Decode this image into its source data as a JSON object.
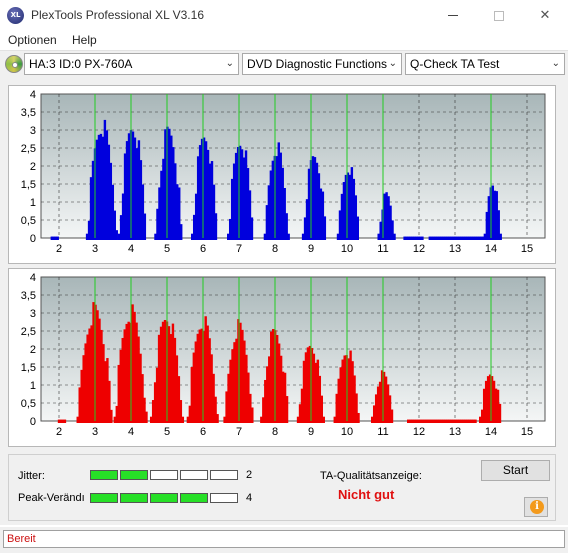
{
  "window": {
    "title": "PlexTools Professional XL V3.16",
    "icon_text": "XL"
  },
  "menu": [
    {
      "label": "Optionen"
    },
    {
      "label": "Help"
    }
  ],
  "toolbar": {
    "drive": "HA:3 ID:0  PX-760A",
    "function": "DVD Diagnostic Functions",
    "test": "Q-Check TA Test"
  },
  "charts": {
    "bar_color_top": "#0000dd",
    "bar_color_bottom": "#ee0000",
    "marker_color": "#22cc22"
  },
  "chart_data": [
    {
      "type": "bar",
      "name_hint": "top",
      "x_ticks": [
        "2",
        "3",
        "4",
        "5",
        "6",
        "7",
        "8",
        "9",
        "10",
        "11",
        "12",
        "13",
        "14",
        "15"
      ],
      "y_ticks": [
        "0",
        "0,5",
        "1",
        "1,5",
        "2",
        "2,5",
        "3",
        "3,5",
        "4"
      ],
      "xlim": [
        1.5,
        15.5
      ],
      "ylim": [
        0,
        4
      ],
      "markers": [
        3,
        4,
        5,
        6,
        7,
        8,
        9,
        10,
        11,
        14
      ],
      "peaks": [
        {
          "x": 3.2,
          "h": 3.1,
          "w": 0.42
        },
        {
          "x": 4.05,
          "h": 3.05,
          "w": 0.38
        },
        {
          "x": 5.05,
          "h": 2.95,
          "w": 0.37
        },
        {
          "x": 6.05,
          "h": 2.8,
          "w": 0.35
        },
        {
          "x": 7.05,
          "h": 2.65,
          "w": 0.35
        },
        {
          "x": 8.05,
          "h": 2.5,
          "w": 0.33
        },
        {
          "x": 9.1,
          "h": 2.25,
          "w": 0.32
        },
        {
          "x": 10.05,
          "h": 1.95,
          "w": 0.3
        },
        {
          "x": 11.1,
          "h": 1.2,
          "w": 0.22
        },
        {
          "x": 14.05,
          "h": 1.55,
          "w": 0.22
        }
      ],
      "floor_ranges": [
        [
          1.8,
          2.0
        ],
        [
          11.6,
          12.1
        ],
        [
          12.3,
          13.9
        ]
      ]
    },
    {
      "type": "bar",
      "name_hint": "bottom",
      "x_ticks": [
        "2",
        "3",
        "4",
        "5",
        "6",
        "7",
        "8",
        "9",
        "10",
        "11",
        "12",
        "13",
        "14",
        "15"
      ],
      "y_ticks": [
        "0",
        "0,5",
        "1",
        "1,5",
        "2",
        "2,5",
        "3",
        "3,5",
        "4"
      ],
      "xlim": [
        1.5,
        15.5
      ],
      "ylim": [
        0,
        4
      ],
      "markers": [
        3,
        4,
        5,
        6,
        7,
        8,
        9,
        10,
        11,
        14
      ],
      "peaks": [
        {
          "x": 3.0,
          "h": 3.05,
          "w": 0.48
        },
        {
          "x": 4.0,
          "h": 3.0,
          "w": 0.45
        },
        {
          "x": 5.0,
          "h": 2.85,
          "w": 0.44
        },
        {
          "x": 6.0,
          "h": 2.75,
          "w": 0.42
        },
        {
          "x": 7.0,
          "h": 2.6,
          "w": 0.4
        },
        {
          "x": 8.0,
          "h": 2.45,
          "w": 0.38
        },
        {
          "x": 9.0,
          "h": 2.1,
          "w": 0.36
        },
        {
          "x": 10.0,
          "h": 1.95,
          "w": 0.34
        },
        {
          "x": 11.0,
          "h": 1.3,
          "w": 0.3
        },
        {
          "x": 14.0,
          "h": 1.3,
          "w": 0.3
        }
      ],
      "floor_ranges": [
        [
          2.0,
          2.2
        ],
        [
          11.7,
          13.6
        ]
      ]
    }
  ],
  "quality": {
    "jitter_label": "Jitter:",
    "jitter_value": "2",
    "jitter_level": 2,
    "peak_label": "Peak-Verändı",
    "peak_value": "4",
    "peak_level": 4,
    "segments_total": 5,
    "ta_label": "TA-Qualitätsanzeige:",
    "ta_result": "Nicht gut"
  },
  "buttons": {
    "start": "Start",
    "info": "i"
  },
  "status": {
    "text": "Bereit"
  }
}
